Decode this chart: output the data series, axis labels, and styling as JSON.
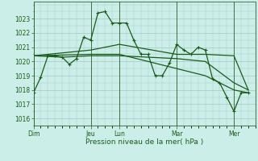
{
  "background_color": "#cceee8",
  "grid_color": "#aacccc",
  "line_color": "#1a5c1a",
  "xlabel": "Pression niveau de la mer( hPa )",
  "ylim": [
    1015.5,
    1024.2
  ],
  "yticks": [
    1016,
    1017,
    1018,
    1019,
    1020,
    1021,
    1022,
    1023
  ],
  "day_labels": [
    "Dim",
    "Jeu",
    "Lun",
    "Mar",
    "Mer"
  ],
  "day_positions": [
    0,
    48,
    72,
    120,
    168
  ],
  "xlim": [
    0,
    186
  ],
  "line1": [
    [
      0,
      1017.8
    ],
    [
      6,
      1018.9
    ],
    [
      12,
      1020.4
    ],
    [
      18,
      1020.4
    ],
    [
      24,
      1020.3
    ],
    [
      30,
      1019.8
    ],
    [
      36,
      1020.2
    ],
    [
      42,
      1021.7
    ],
    [
      48,
      1021.5
    ],
    [
      54,
      1023.4
    ],
    [
      60,
      1023.5
    ],
    [
      66,
      1022.7
    ],
    [
      72,
      1022.7
    ],
    [
      78,
      1022.7
    ],
    [
      84,
      1021.5
    ],
    [
      90,
      1020.5
    ],
    [
      96,
      1020.5
    ],
    [
      102,
      1019.0
    ],
    [
      108,
      1019.0
    ],
    [
      114,
      1019.9
    ],
    [
      120,
      1021.2
    ],
    [
      126,
      1020.8
    ],
    [
      132,
      1020.5
    ],
    [
      138,
      1021.0
    ],
    [
      144,
      1020.8
    ],
    [
      150,
      1018.8
    ],
    [
      156,
      1018.5
    ],
    [
      162,
      1017.5
    ],
    [
      168,
      1016.5
    ],
    [
      174,
      1017.8
    ],
    [
      180,
      1017.8
    ]
  ],
  "line2": [
    [
      0,
      1020.4
    ],
    [
      24,
      1020.3
    ],
    [
      48,
      1020.4
    ],
    [
      72,
      1020.4
    ],
    [
      96,
      1020.3
    ],
    [
      120,
      1020.2
    ],
    [
      144,
      1020.0
    ],
    [
      168,
      1018.5
    ],
    [
      180,
      1018.0
    ]
  ],
  "line3": [
    [
      0,
      1020.4
    ],
    [
      48,
      1020.8
    ],
    [
      72,
      1021.2
    ],
    [
      120,
      1020.5
    ],
    [
      144,
      1020.5
    ],
    [
      168,
      1020.4
    ],
    [
      180,
      1018.0
    ]
  ],
  "line4": [
    [
      0,
      1020.4
    ],
    [
      48,
      1020.5
    ],
    [
      72,
      1020.5
    ],
    [
      120,
      1019.5
    ],
    [
      144,
      1019.0
    ],
    [
      168,
      1018.0
    ],
    [
      180,
      1017.8
    ]
  ]
}
